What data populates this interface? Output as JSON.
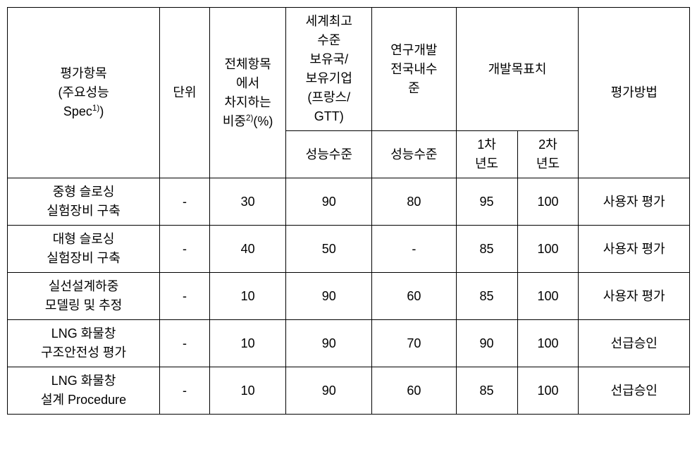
{
  "table": {
    "headers": {
      "col1_line1": "평가항목",
      "col1_line2": "(주요성능",
      "col1_line3_prefix": "Spec",
      "col1_line3_sup": "1)",
      "col1_line3_suffix": ")",
      "col2": "단위",
      "col3_line1": "전체항목",
      "col3_line2": "에서",
      "col3_line3": "차지하는",
      "col3_line4_prefix": "비중",
      "col3_line4_sup": "2)",
      "col3_line4_suffix": "(%)",
      "col4_line1": "세계최고",
      "col4_line2": "수준",
      "col4_line3": "보유국/",
      "col4_line4": "보유기업",
      "col4_line5": "(프랑스/",
      "col4_line6_prefix": "GTT",
      "col4_line6_suffix": ")",
      "col5_line1": "연구개발",
      "col5_line2": "전국내수",
      "col5_line3": "준",
      "col6": "개발목표치",
      "col8": "평가방법",
      "sub_col4": "성능수준",
      "sub_col5": "성능수준",
      "sub_col6_line1": "1차",
      "sub_col6_line2": "년도",
      "sub_col7_line1": "2차",
      "sub_col7_line2": "년도"
    },
    "rows": [
      {
        "item_line1": "중형 슬로싱",
        "item_line2": "실험장비 구축",
        "unit": "-",
        "weight": "30",
        "world": "90",
        "domestic": "80",
        "year1": "95",
        "year2": "100",
        "method": "사용자 평가"
      },
      {
        "item_line1": "대형 슬로싱",
        "item_line2": "실험장비 구축",
        "unit": "-",
        "weight": "40",
        "world": "50",
        "domestic": "-",
        "year1": "85",
        "year2": "100",
        "method": "사용자 평가"
      },
      {
        "item_line1": "실선설계하중",
        "item_line2": "모델링 및 추정",
        "unit": "-",
        "weight": "10",
        "world": "90",
        "domestic": "60",
        "year1": "85",
        "year2": "100",
        "method": "사용자 평가"
      },
      {
        "item_line1": "LNG 화물창",
        "item_line2": "구조안전성 평가",
        "unit": "-",
        "weight": "10",
        "world": "90",
        "domestic": "70",
        "year1": "90",
        "year2": "100",
        "method": "선급승인"
      },
      {
        "item_line1": "LNG 화물창",
        "item_line2": "설계 Procedure",
        "unit": "-",
        "weight": "10",
        "world": "90",
        "domestic": "60",
        "year1": "85",
        "year2": "100",
        "method": "선급승인"
      }
    ]
  }
}
